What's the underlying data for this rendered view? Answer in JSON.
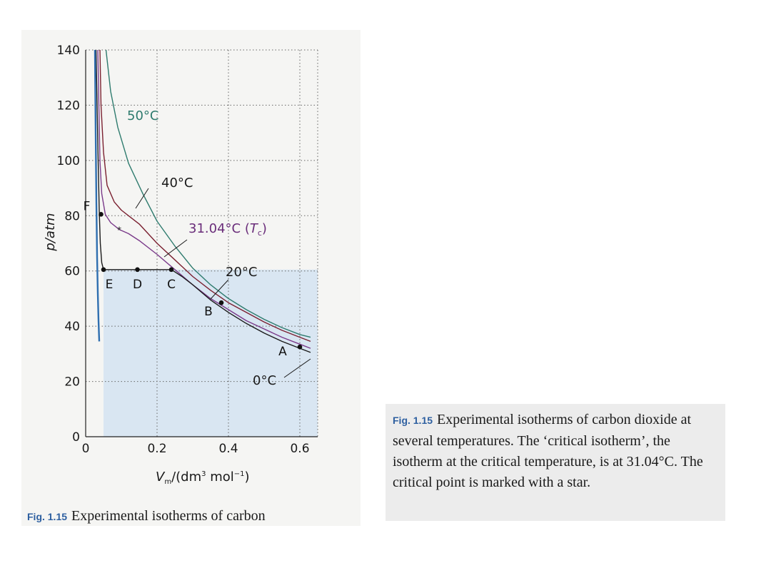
{
  "chart_data": {
    "type": "line",
    "xlabel": "V_m/(dm³ mol⁻¹)",
    "ylabel": "p/atm",
    "xlim": [
      0,
      0.65
    ],
    "ylim": [
      0,
      140
    ],
    "xticks": [
      0,
      0.2,
      0.4,
      0.6
    ],
    "xtick_labels": [
      "0",
      "0.2",
      "0.4",
      "0.6"
    ],
    "yticks": [
      0,
      20,
      40,
      60,
      80,
      100,
      120,
      140
    ],
    "ytick_labels": [
      "0",
      "20",
      "40",
      "60",
      "80",
      "100",
      "120",
      "140"
    ],
    "grid": true,
    "series": [
      {
        "name": "50°C",
        "color": "#2e7b6e",
        "x": [
          0.057,
          0.07,
          0.09,
          0.12,
          0.16,
          0.2,
          0.25,
          0.3,
          0.35,
          0.4,
          0.45,
          0.5,
          0.55,
          0.6,
          0.63
        ],
        "y": [
          140,
          125,
          112,
          99,
          88,
          78,
          69,
          61,
          55,
          50,
          46,
          42.5,
          39.5,
          37,
          36
        ]
      },
      {
        "name": "40°C",
        "color": "#7a2030",
        "x": [
          0.04,
          0.043,
          0.05,
          0.06,
          0.08,
          0.1,
          0.12,
          0.15,
          0.2,
          0.25,
          0.3,
          0.35,
          0.4,
          0.45,
          0.5,
          0.55,
          0.6,
          0.63
        ],
        "y": [
          140,
          120,
          103,
          91,
          85,
          82,
          80,
          77,
          70,
          64,
          58,
          53,
          48.5,
          45,
          41.5,
          38.5,
          36,
          34.5
        ]
      },
      {
        "name": "31.04°C (T_c)",
        "color": "#7a3a8a",
        "x": [
          0.034,
          0.037,
          0.04,
          0.045,
          0.055,
          0.07,
          0.094,
          0.12,
          0.15,
          0.2,
          0.25,
          0.3,
          0.35,
          0.4,
          0.45,
          0.5,
          0.55,
          0.6,
          0.63
        ],
        "y": [
          140,
          120,
          100,
          88,
          80.5,
          77.5,
          75,
          73.5,
          71,
          66,
          60.5,
          55,
          50,
          46,
          42,
          39,
          36,
          33.5,
          32
        ]
      },
      {
        "name": "20°C",
        "color": "#1a1a1a",
        "x": [
          0.029,
          0.032,
          0.035,
          0.038,
          0.041,
          0.045,
          0.05,
          0.145,
          0.24,
          0.27,
          0.3,
          0.35,
          0.4,
          0.45,
          0.5,
          0.55,
          0.6,
          0.63
        ],
        "y": [
          140,
          120,
          100,
          82,
          70,
          63,
          60.5,
          60.5,
          60.5,
          58,
          55,
          49.5,
          45,
          41,
          37.5,
          34.5,
          32,
          30.5
        ]
      },
      {
        "name": "0°C",
        "color": "#2f6fb0",
        "x": [
          0.026,
          0.028,
          0.03,
          0.032,
          0.034,
          0.036,
          0.038
        ],
        "y": [
          140,
          110,
          85,
          65,
          52,
          42,
          34.5
        ]
      }
    ],
    "points": [
      {
        "label": "F",
        "x": 0.043,
        "y": 80.5
      },
      {
        "label": "E",
        "x": 0.05,
        "y": 60.5
      },
      {
        "label": "D",
        "x": 0.145,
        "y": 60.5
      },
      {
        "label": "C",
        "x": 0.24,
        "y": 60.5
      },
      {
        "label": "B",
        "x": 0.38,
        "y": 48.5
      },
      {
        "label": "A",
        "x": 0.6,
        "y": 32.5
      }
    ],
    "critical_point": {
      "label": "*",
      "x": 0.094,
      "y": 75
    }
  },
  "curve_labels": {
    "t50": "50°C",
    "t40": "40°C",
    "t31": "31.04°C (",
    "t31_T": "T",
    "t31_c": "c",
    "t31_end": ")",
    "t20": "20°C",
    "t0": "0°C"
  },
  "axis_text": {
    "ylabel": "p/atm",
    "xlabel_V": "V",
    "xlabel_m": "m",
    "xlabel_rest": "/(dm",
    "xlabel_sup3": "3",
    "xlabel_mol": " mol",
    "xlabel_supm1": "−1",
    "xlabel_close": ")"
  },
  "caption_left": {
    "fig_no": "Fig. 1.15",
    "text": "Experimental isotherms of carbon"
  },
  "caption_right": {
    "fig_no": "Fig. 1.15",
    "text": "Experimental isotherms of carbon dioxide at several temperatures. The ‘critical isotherm’, the isotherm at the critical temperature, is at 31.04°C. The critical point is marked with a star."
  },
  "colors": {
    "shade": "#cfe0f2",
    "grid": "#666666",
    "accent_fig": "#2d5fa0"
  }
}
